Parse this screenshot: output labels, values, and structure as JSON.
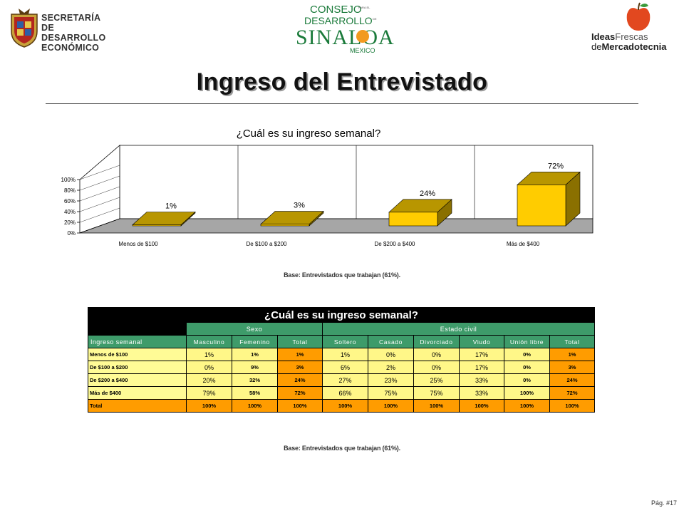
{
  "header": {
    "left_logo": {
      "lines": [
        "SECRETARÍA",
        "DE DESARROLLO",
        "ECONÓMICO"
      ]
    },
    "center_logo": {
      "line1": "CONSEJO",
      "small1": "PARA EL",
      "line2": "DESARROLLO",
      "small2": "DE",
      "line3": "SINALOA",
      "line4": "MEXICO"
    },
    "right_logo": {
      "ideas": "Ideas",
      "frescas": "Frescas",
      "de": "de",
      "mercadotecnia": "Mercadotecnia"
    }
  },
  "page": {
    "title": "Ingreso del Entrevistado",
    "chart_base": "Base: Entrevistados que trabajan (61%).",
    "table_base": "Base: Entrevistados que trabajan (61%).",
    "page_number": "Pág. #17"
  },
  "colors": {
    "bar_front": "#ffcc00",
    "bar_side": "#8a7000",
    "floor": "#a6a6a6",
    "table_green": "#3e9b6a",
    "table_yellow": "#fff788",
    "table_orange": "#ff9c00"
  },
  "chart_data": {
    "type": "bar",
    "title": "¿Cuál es su ingreso semanal?",
    "categories": [
      "Menos de $100",
      "De $100 a $200",
      "De $200 a $400",
      "Más de $400"
    ],
    "values": [
      1,
      3,
      24,
      72
    ],
    "data_labels": [
      "1%",
      "3%",
      "24%",
      "72%"
    ],
    "y_ticks": [
      "0%",
      "20%",
      "40%",
      "60%",
      "80%",
      "100%"
    ],
    "y_tick_values": [
      0,
      20,
      40,
      60,
      80,
      100
    ],
    "ylim": [
      0,
      100
    ],
    "grid": true,
    "three_d": true
  },
  "table": {
    "title": "¿Cuál es su ingreso semanal?",
    "group_sexo": "Sexo",
    "group_estado": "Estado civil",
    "row_header": "Ingreso semanal",
    "columns": [
      "Masculino",
      "Femenino",
      "Total",
      "Soltero",
      "Casado",
      "Divorciado",
      "Viudo",
      "Unión libre",
      "Total"
    ],
    "rows": [
      {
        "label": "Menos de $100",
        "values": [
          "1%",
          "1%",
          "1%",
          "1%",
          "0%",
          "0%",
          "17%",
          "0%",
          "1%"
        ]
      },
      {
        "label": "De $100 a $200",
        "values": [
          "0%",
          "9%",
          "3%",
          "6%",
          "2%",
          "0%",
          "17%",
          "0%",
          "3%"
        ]
      },
      {
        "label": "De $200 a $400",
        "values": [
          "20%",
          "32%",
          "24%",
          "27%",
          "23%",
          "25%",
          "33%",
          "0%",
          "24%"
        ]
      },
      {
        "label": "Más de $400",
        "values": [
          "79%",
          "58%",
          "72%",
          "66%",
          "75%",
          "75%",
          "33%",
          "100%",
          "72%"
        ]
      }
    ],
    "total_row": {
      "label": "Total",
      "values": [
        "100%",
        "100%",
        "100%",
        "100%",
        "100%",
        "100%",
        "100%",
        "100%",
        "100%"
      ]
    }
  }
}
